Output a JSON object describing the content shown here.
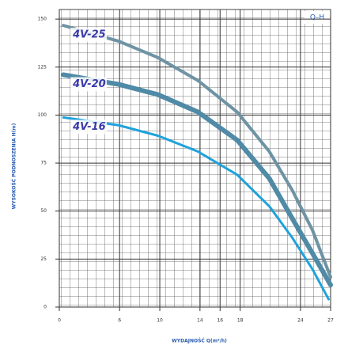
{
  "chart_data": {
    "type": "line",
    "title": "Q–H",
    "xlabel": "WYDAJNOŚĆ  Q(m³/h)",
    "ylabel": "WYSOKOŚĆ PODNOSZENIA  H(m)",
    "xlim": [
      0,
      27
    ],
    "ylim": [
      0,
      155
    ],
    "xticks": [
      0,
      6,
      10,
      14,
      16,
      18,
      24,
      27
    ],
    "yticks": [
      0,
      25,
      50,
      75,
      100,
      125,
      150
    ],
    "grid": true,
    "series": [
      {
        "name": "4V-25",
        "color": "#6e93a4",
        "width": 4,
        "x": [
          0.4,
          5.9,
          9.8,
          13.8,
          17.7,
          20.9,
          23.2,
          25.2,
          27
        ],
        "values": [
          146.7,
          138.5,
          130,
          118,
          101.6,
          81,
          60.7,
          40,
          15.6
        ]
      },
      {
        "name": "4V-20",
        "color": "#4f8aa6",
        "width": 6,
        "x": [
          0.4,
          5.9,
          9.8,
          13.8,
          17.7,
          20.9,
          23.2,
          25.2,
          27
        ],
        "values": [
          121,
          116,
          110.7,
          101.6,
          87,
          67,
          46,
          28,
          11.5
        ]
      },
      {
        "name": "4V-16",
        "color": "#1ea2dc",
        "width": 3,
        "x": [
          0.4,
          5.9,
          9.8,
          13.8,
          17.7,
          20.9,
          23.2,
          25.2,
          26.8
        ],
        "values": [
          98.8,
          94.7,
          89.3,
          81,
          68.9,
          52.5,
          36,
          19.7,
          4.1
        ]
      }
    ]
  }
}
